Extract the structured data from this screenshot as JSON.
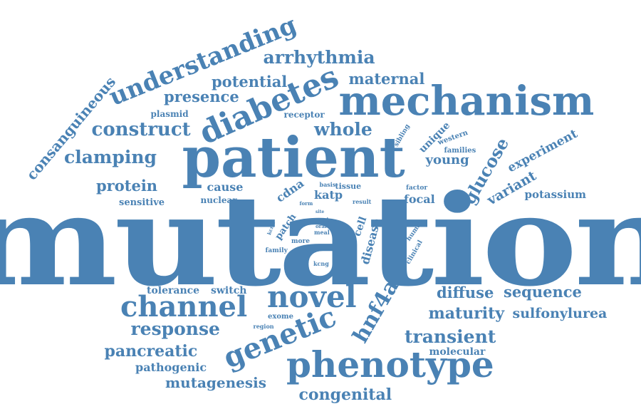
{
  "theme": {
    "word_color": "#4a82b4",
    "background": "#ffffff"
  },
  "words": [
    {
      "id": "mutation",
      "text": "mutation",
      "weight": 100
    },
    {
      "id": "patient",
      "text": "patient",
      "weight": 48
    },
    {
      "id": "mechanism",
      "text": "mechanism",
      "weight": 36
    },
    {
      "id": "phenotype",
      "text": "phenotype",
      "weight": 32
    },
    {
      "id": "diabetes",
      "text": "diabetes",
      "weight": 30
    },
    {
      "id": "novel",
      "text": "novel",
      "weight": 30
    },
    {
      "id": "genetic",
      "text": "genetic",
      "weight": 29
    },
    {
      "id": "channel",
      "text": "channel",
      "weight": 27
    },
    {
      "id": "understanding",
      "text": "understanding",
      "weight": 25
    },
    {
      "id": "hnf4a",
      "text": "hnf4a",
      "weight": 22
    },
    {
      "id": "construct",
      "text": "construct",
      "weight": 20
    },
    {
      "id": "clamping",
      "text": "clamping",
      "weight": 19
    },
    {
      "id": "arrhythmia",
      "text": "arrhythmia",
      "weight": 19
    },
    {
      "id": "whole",
      "text": "whole",
      "weight": 19
    },
    {
      "id": "response",
      "text": "response",
      "weight": 19
    },
    {
      "id": "transient",
      "text": "transient",
      "weight": 19
    },
    {
      "id": "glucose",
      "text": "glucose",
      "weight": 18
    },
    {
      "id": "maturity",
      "text": "maturity",
      "weight": 17
    },
    {
      "id": "pancreatic",
      "text": "pancreatic",
      "weight": 17
    },
    {
      "id": "congenital",
      "text": "congenital",
      "weight": 17
    },
    {
      "id": "consanguineous",
      "text": "consanguineous",
      "weight": 17
    },
    {
      "id": "sequence",
      "text": "sequence",
      "weight": 16
    },
    {
      "id": "diffuse",
      "text": "diffuse",
      "weight": 16
    },
    {
      "id": "protein",
      "text": "protein",
      "weight": 16
    },
    {
      "id": "potential",
      "text": "potential",
      "weight": 16
    },
    {
      "id": "presence",
      "text": "presence",
      "weight": 16
    },
    {
      "id": "maternal",
      "text": "maternal",
      "weight": 16
    },
    {
      "id": "mutagenesis",
      "text": "mutagenesis",
      "weight": 15
    },
    {
      "id": "sulfonylurea",
      "text": "sulfonylurea",
      "weight": 15
    },
    {
      "id": "variant",
      "text": "variant",
      "weight": 14
    },
    {
      "id": "young",
      "text": "young",
      "weight": 14
    },
    {
      "id": "experiment",
      "text": "experiment",
      "weight": 13
    },
    {
      "id": "pathogenic",
      "text": "pathogenic",
      "weight": 13
    },
    {
      "id": "cause",
      "text": "cause",
      "weight": 13
    },
    {
      "id": "katp",
      "text": "katp",
      "weight": 13
    },
    {
      "id": "cdna",
      "text": "cdna",
      "weight": 13
    },
    {
      "id": "focal",
      "text": "focal",
      "weight": 13
    },
    {
      "id": "disease",
      "text": "disease",
      "weight": 13
    },
    {
      "id": "potassium",
      "text": "potassium",
      "weight": 12
    },
    {
      "id": "tolerance",
      "text": "tolerance",
      "weight": 12
    },
    {
      "id": "switch",
      "text": "switch",
      "weight": 12
    },
    {
      "id": "molecular",
      "text": "molecular",
      "weight": 12
    },
    {
      "id": "unique",
      "text": "unique",
      "weight": 11
    },
    {
      "id": "cell",
      "text": "cell",
      "weight": 11
    },
    {
      "id": "patch",
      "text": "patch",
      "weight": 11
    },
    {
      "id": "sensitive",
      "text": "sensitive",
      "weight": 10
    },
    {
      "id": "receptor",
      "text": "receptor",
      "weight": 10
    },
    {
      "id": "plasmid",
      "text": "plasmid",
      "weight": 9
    },
    {
      "id": "nuclear",
      "text": "nuclear",
      "weight": 9
    },
    {
      "id": "tissue",
      "text": "tissue",
      "weight": 9
    },
    {
      "id": "families",
      "text": "families",
      "weight": 8
    },
    {
      "id": "western",
      "text": "western",
      "weight": 8
    },
    {
      "id": "exome",
      "text": "exome",
      "weight": 8
    },
    {
      "id": "sibling",
      "text": "sibling",
      "weight": 7
    },
    {
      "id": "human",
      "text": "human",
      "weight": 7
    },
    {
      "id": "clinical",
      "text": "clinical",
      "weight": 7
    },
    {
      "id": "factor",
      "text": "factor",
      "weight": 7
    },
    {
      "id": "family",
      "text": "family",
      "weight": 7
    },
    {
      "id": "more",
      "text": "more",
      "weight": 7
    },
    {
      "id": "basis",
      "text": "basis",
      "weight": 6
    },
    {
      "id": "result",
      "text": "result",
      "weight": 6
    },
    {
      "id": "meal",
      "text": "meal",
      "weight": 6
    },
    {
      "id": "most",
      "text": "most",
      "weight": 6
    },
    {
      "id": "region",
      "text": "region",
      "weight": 6
    },
    {
      "id": "kcng",
      "text": "kcng",
      "weight": 6
    },
    {
      "id": "kcnk",
      "text": "kcnk",
      "weight": 5
    },
    {
      "id": "form",
      "text": "form",
      "weight": 5
    },
    {
      "id": "site",
      "text": "site",
      "weight": 5
    },
    {
      "id": "oral",
      "text": "oral",
      "weight": 5
    },
    {
      "id": "glud",
      "text": "glud",
      "weight": 5
    }
  ]
}
